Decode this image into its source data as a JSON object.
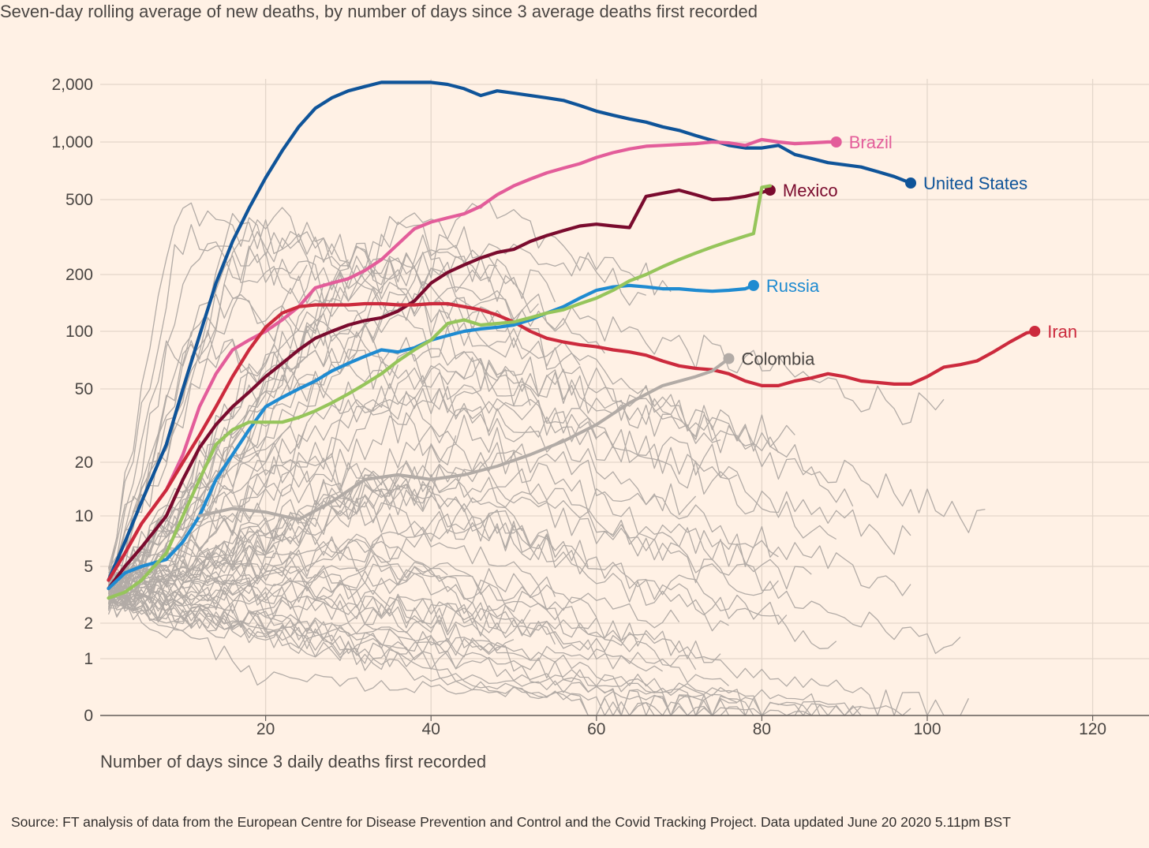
{
  "subtitle": "Seven-day rolling average of new deaths, by number of days since 3 average deaths first recorded",
  "source": "Source: FT analysis of data from the European Centre for Disease Prevention and Control and the Covid Tracking Project. Data updated June 20 2020 5.11pm BST",
  "colors": {
    "background": "#fff1e5",
    "grid": "#e3d6ca",
    "other_countries": "#b2aba6",
    "united_states": "#0f5499",
    "brazil": "#e35d9a",
    "mexico": "#7a0b2e",
    "iran": "#cc2a3d",
    "russia": "#1f8bd1",
    "colombia": "#b2aba6",
    "highlight_green": "#96c55b"
  },
  "chart_data": {
    "type": "line",
    "xlabel": "Number of days since 3 daily deaths first recorded",
    "ylabel": "",
    "xlim": [
      0,
      127
    ],
    "x_ticks": [
      20,
      40,
      60,
      80,
      100,
      120
    ],
    "x_tick_labels": [
      "20",
      "40",
      "60",
      "80",
      "100",
      "120"
    ],
    "y_scale": "log-style (symlog)",
    "y_ticks": [
      0,
      1,
      2,
      5,
      10,
      20,
      50,
      100,
      200,
      500,
      1000,
      2000
    ],
    "y_tick_labels": [
      "0",
      "1",
      "2",
      "5",
      "10",
      "20",
      "50",
      "100",
      "200",
      "500",
      "1,000",
      "2,000"
    ],
    "grid": true,
    "legend": "direct labels at line ends",
    "series": [
      {
        "name": "United States",
        "color": "#0f5499",
        "x": [
          1,
          3,
          5,
          8,
          10,
          12,
          14,
          16,
          18,
          20,
          22,
          24,
          26,
          28,
          30,
          32,
          34,
          36,
          38,
          40,
          42,
          44,
          46,
          48,
          50,
          52,
          54,
          56,
          58,
          60,
          62,
          64,
          66,
          68,
          70,
          72,
          74,
          76,
          78,
          80,
          82,
          84,
          86,
          88,
          90,
          92,
          94,
          96,
          98
        ],
        "y": [
          4,
          7,
          12,
          25,
          50,
          95,
          180,
          300,
          450,
          650,
          900,
          1200,
          1500,
          1700,
          1850,
          1950,
          2050,
          2050,
          2050,
          2050,
          2000,
          1900,
          1750,
          1850,
          1800,
          1750,
          1700,
          1650,
          1550,
          1450,
          1380,
          1320,
          1270,
          1200,
          1150,
          1080,
          1020,
          960,
          930,
          930,
          960,
          860,
          820,
          780,
          760,
          740,
          700,
          660,
          610
        ]
      },
      {
        "name": "Brazil",
        "color": "#e35d9a",
        "x": [
          1,
          3,
          5,
          8,
          10,
          12,
          14,
          16,
          18,
          20,
          22,
          24,
          26,
          28,
          30,
          32,
          34,
          36,
          38,
          40,
          42,
          44,
          46,
          48,
          50,
          52,
          54,
          56,
          58,
          60,
          62,
          64,
          66,
          68,
          70,
          72,
          74,
          76,
          78,
          80,
          82,
          84,
          86,
          88,
          89
        ],
        "y": [
          4,
          6,
          9,
          14,
          22,
          40,
          60,
          80,
          90,
          100,
          115,
          135,
          170,
          180,
          190,
          210,
          240,
          290,
          350,
          380,
          400,
          420,
          460,
          530,
          590,
          640,
          690,
          730,
          770,
          830,
          880,
          920,
          950,
          960,
          970,
          980,
          1000,
          990,
          960,
          1030,
          1000,
          980,
          990,
          1000,
          1000
        ]
      },
      {
        "name": "Mexico",
        "color": "#7a0b2e",
        "x": [
          1,
          3,
          5,
          8,
          10,
          12,
          14,
          16,
          18,
          20,
          22,
          24,
          26,
          28,
          30,
          32,
          34,
          36,
          38,
          40,
          42,
          44,
          46,
          48,
          50,
          52,
          54,
          56,
          58,
          60,
          62,
          64,
          66,
          68,
          70,
          72,
          74,
          76,
          78,
          80,
          81
        ],
        "y": [
          3.5,
          5,
          6.5,
          10,
          16,
          24,
          32,
          40,
          48,
          58,
          68,
          80,
          92,
          100,
          108,
          114,
          118,
          128,
          145,
          180,
          205,
          225,
          245,
          262,
          272,
          300,
          322,
          342,
          362,
          370,
          362,
          355,
          520,
          540,
          560,
          530,
          500,
          505,
          520,
          545,
          560
        ]
      },
      {
        "name": "Iran",
        "color": "#cc2a3d",
        "x": [
          1,
          3,
          5,
          8,
          10,
          12,
          14,
          16,
          18,
          20,
          22,
          24,
          26,
          28,
          30,
          32,
          34,
          36,
          38,
          40,
          42,
          44,
          46,
          48,
          50,
          52,
          54,
          56,
          58,
          60,
          62,
          64,
          66,
          68,
          70,
          72,
          74,
          76,
          78,
          80,
          82,
          84,
          86,
          88,
          90,
          92,
          94,
          96,
          98,
          100,
          102,
          104,
          106,
          108,
          110,
          112,
          113
        ],
        "y": [
          4,
          6,
          9,
          14,
          20,
          28,
          40,
          58,
          80,
          105,
          125,
          135,
          138,
          138,
          138,
          140,
          140,
          138,
          138,
          140,
          140,
          135,
          130,
          122,
          112,
          100,
          92,
          88,
          85,
          83,
          80,
          78,
          75,
          70,
          66,
          64,
          63,
          60,
          55,
          52,
          52,
          55,
          57,
          60,
          58,
          55,
          54,
          53,
          53,
          58,
          65,
          67,
          70,
          78,
          88,
          98,
          100
        ]
      },
      {
        "name": "Russia",
        "color": "#1f8bd1",
        "x": [
          1,
          3,
          5,
          8,
          10,
          12,
          14,
          16,
          18,
          20,
          22,
          24,
          26,
          28,
          30,
          32,
          34,
          36,
          38,
          40,
          42,
          44,
          46,
          48,
          50,
          52,
          54,
          56,
          58,
          60,
          62,
          64,
          66,
          68,
          70,
          72,
          74,
          76,
          78,
          79
        ],
        "y": [
          3.5,
          4.5,
          5,
          5.5,
          7,
          10,
          16,
          22,
          30,
          40,
          45,
          50,
          55,
          62,
          68,
          74,
          80,
          78,
          82,
          90,
          95,
          100,
          103,
          105,
          108,
          115,
          125,
          135,
          150,
          165,
          172,
          175,
          172,
          168,
          168,
          165,
          163,
          165,
          168,
          175
        ]
      },
      {
        "name": "",
        "color": "#96c55b",
        "x": [
          1,
          3,
          5,
          8,
          10,
          12,
          14,
          16,
          18,
          20,
          22,
          24,
          26,
          28,
          30,
          32,
          34,
          36,
          38,
          40,
          42,
          44,
          46,
          48,
          50,
          52,
          54,
          56,
          58,
          60,
          62,
          64,
          66,
          68,
          70,
          72,
          74,
          76,
          78,
          79,
          80,
          81
        ],
        "y": [
          3,
          3.3,
          4,
          6,
          10,
          16,
          25,
          30,
          33,
          33,
          33,
          35,
          38,
          42,
          47,
          53,
          60,
          70,
          80,
          90,
          110,
          115,
          108,
          110,
          112,
          118,
          125,
          130,
          140,
          150,
          165,
          185,
          200,
          220,
          240,
          260,
          280,
          300,
          320,
          330,
          580,
          590
        ]
      },
      {
        "name": "Colombia",
        "color": "#b2aba6",
        "x": [
          12,
          16,
          20,
          24,
          28,
          32,
          36,
          40,
          44,
          48,
          52,
          56,
          60,
          64,
          68,
          72,
          74,
          76
        ],
        "y": [
          10,
          11,
          10.5,
          9.5,
          12,
          16,
          17,
          16,
          17,
          19,
          22,
          26,
          32,
          42,
          52,
          58,
          62,
          72
        ]
      }
    ],
    "annotations": [
      "Brazil",
      "United States",
      "Mexico",
      "Russia",
      "Iran",
      "Colombia"
    ]
  }
}
